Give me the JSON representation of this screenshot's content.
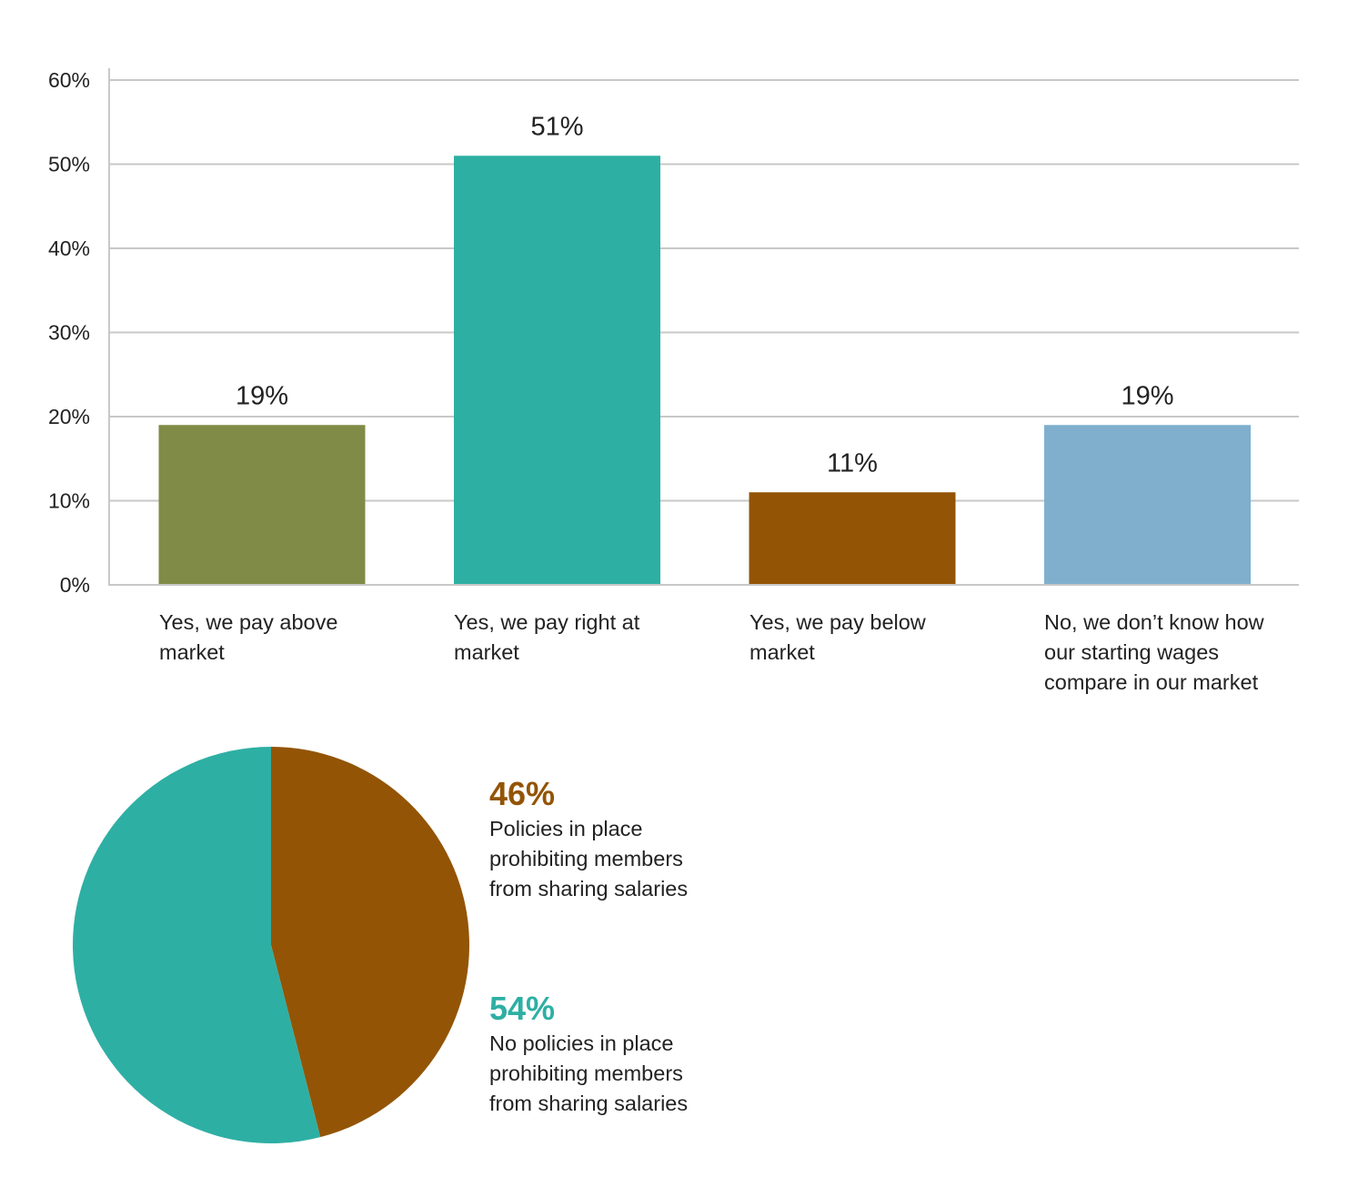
{
  "chart_data": [
    {
      "type": "bar",
      "categories": [
        "Yes, we pay above market",
        "Yes, we pay right at market",
        "Yes, we pay below market",
        "No, we don’t know how our starting wages compare in our market"
      ],
      "category_lines": [
        [
          "Yes, we pay above",
          "market"
        ],
        [
          "Yes, we pay right at",
          "market"
        ],
        [
          "Yes, we pay below",
          "market"
        ],
        [
          "No, we don’t know how",
          "our starting wages",
          "compare in our market"
        ]
      ],
      "values": [
        19,
        51,
        11,
        19
      ],
      "value_labels": [
        "19%",
        "51%",
        "11%",
        "19%"
      ],
      "colors": [
        "#7F8B47",
        "#2EAFA4",
        "#935405",
        "#7FAFCD"
      ],
      "ylim": [
        0,
        60
      ],
      "yticks": [
        0,
        10,
        20,
        30,
        40,
        50,
        60
      ],
      "ytick_labels": [
        "0%",
        "10%",
        "20%",
        "30%",
        "40%",
        "50%",
        "60%"
      ],
      "grid": true,
      "gridline_color": "#c8c8c8"
    },
    {
      "type": "pie",
      "slices": [
        {
          "value": 46,
          "label": "46%",
          "text": [
            "Policies in place",
            "prohibiting members",
            "from sharing salaries"
          ],
          "color": "#935405"
        },
        {
          "value": 54,
          "label": "54%",
          "text": [
            "No policies in place",
            "prohibiting members",
            "from sharing salaries"
          ],
          "color": "#2EAFA4"
        }
      ],
      "legend_position": "right"
    }
  ]
}
